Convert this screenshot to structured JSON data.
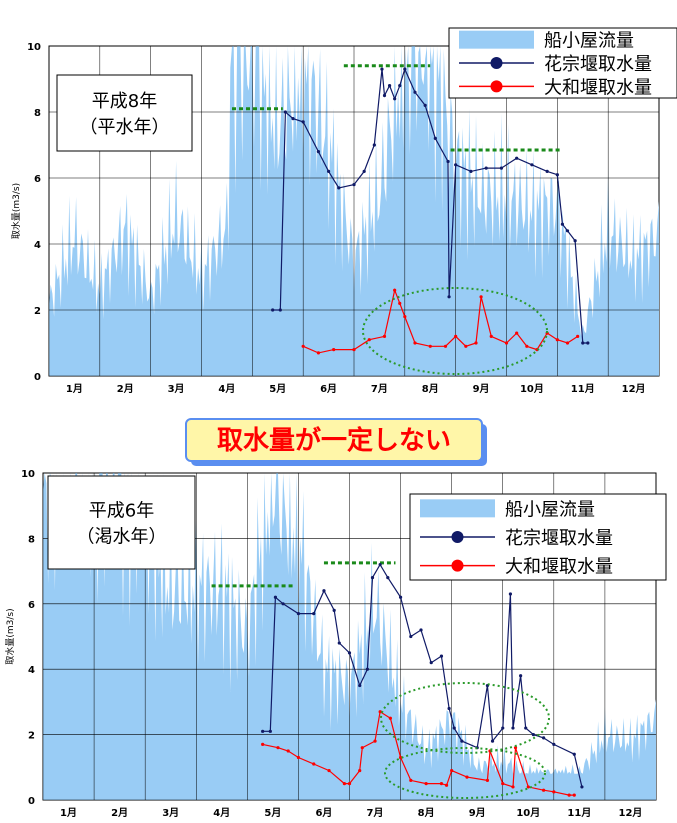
{
  "banner": {
    "text": "取水量が一定しない",
    "color": "#ff0000",
    "bg": "#fff6a8",
    "border": "#5a8ef0"
  },
  "colors": {
    "flow": "#99ccf5",
    "hanamune": "#101a66",
    "yamato": "#ff0000",
    "target": "#1a8a1a",
    "ellipse": "#2a9a2a"
  },
  "chart_data": [
    {
      "type": "line",
      "title": "平成8年\n（平水年）",
      "title_lines": [
        "平成8年",
        "（平水年）"
      ],
      "ylabel": "取水量(m3/s)",
      "xlabel": "",
      "ylim": [
        0,
        10
      ],
      "yticks": [
        "0",
        "2",
        "4",
        "6",
        "8",
        "10"
      ],
      "x_categories": [
        "1月",
        "2月",
        "3月",
        "4月",
        "5月",
        "6月",
        "7月",
        "8月",
        "9月",
        "10月",
        "11月",
        "12月"
      ],
      "grid": true,
      "legend": [
        "船小屋流量",
        "花宗堰取水量",
        "大和堰取水量"
      ],
      "legend_position": "top-right",
      "series": [
        {
          "name": "船小屋流量",
          "kind": "area",
          "x": [
            0,
            0.5,
            1,
            1.5,
            2,
            2.5,
            3,
            3.5,
            3.6,
            4,
            4.5,
            5,
            5.5,
            6,
            6.5,
            7,
            7.5,
            8,
            8.5,
            9,
            9.5,
            10,
            10.5,
            11,
            11.5,
            12
          ],
          "values": [
            2.2,
            4.2,
            2.6,
            4.5,
            2.4,
            4.8,
            3.0,
            4.5,
            10,
            10,
            7.5,
            9.5,
            7.0,
            3.5,
            5.5,
            10,
            10,
            6.5,
            5.5,
            5.5,
            5.0,
            5.2,
            1.2,
            4.5,
            3.5,
            4.3
          ]
        },
        {
          "name": "花宗堰取水量",
          "kind": "line",
          "x": [
            4.4,
            4.55,
            4.65,
            4.8,
            5.0,
            5.3,
            5.5,
            5.7,
            6.0,
            6.2,
            6.4,
            6.55,
            6.6,
            6.7,
            6.8,
            6.9,
            7.0,
            7.2,
            7.4,
            7.6,
            7.85,
            7.87,
            8.0,
            8.3,
            8.6,
            8.9,
            9.2,
            9.5,
            9.8,
            10.0,
            10.1,
            10.2,
            10.35,
            10.5,
            10.6
          ],
          "values": [
            2.0,
            2.0,
            8.0,
            7.8,
            7.7,
            6.8,
            6.2,
            5.7,
            5.8,
            6.2,
            7.0,
            9.3,
            8.5,
            8.8,
            8.4,
            8.8,
            9.3,
            8.6,
            8.2,
            7.2,
            6.5,
            2.4,
            6.4,
            6.2,
            6.3,
            6.3,
            6.6,
            6.4,
            6.2,
            6.1,
            4.6,
            4.4,
            4.1,
            1.0,
            1.0
          ]
        },
        {
          "name": "大和堰取水量",
          "kind": "line",
          "x": [
            5.0,
            5.3,
            5.6,
            6.0,
            6.3,
            6.6,
            6.8,
            6.9,
            7.0,
            7.2,
            7.5,
            7.8,
            8.0,
            8.2,
            8.4,
            8.5,
            8.7,
            9.0,
            9.2,
            9.4,
            9.6,
            9.8,
            10.0,
            10.2,
            10.4
          ],
          "values": [
            0.9,
            0.7,
            0.8,
            0.8,
            1.1,
            1.2,
            2.6,
            2.2,
            1.8,
            1.0,
            0.9,
            0.9,
            1.2,
            0.9,
            1.0,
            2.4,
            1.2,
            1.0,
            1.3,
            0.9,
            0.8,
            1.3,
            1.1,
            1.0,
            1.2
          ]
        }
      ],
      "target_levels": [
        {
          "x": [
            3.6,
            4.6
          ],
          "value": 8.1
        },
        {
          "x": [
            5.8,
            7.5
          ],
          "value": 9.4
        },
        {
          "x": [
            7.9,
            10.1
          ],
          "value": 6.85
        }
      ]
    },
    {
      "type": "line",
      "title": "平成6年\n（渇水年）",
      "title_lines": [
        "平成6年",
        "（渇水年）"
      ],
      "ylabel": "取水量(m3/s)",
      "xlabel": "",
      "ylim": [
        0,
        10
      ],
      "yticks": [
        "0",
        "2",
        "4",
        "6",
        "8",
        "10"
      ],
      "x_categories": [
        "1月",
        "2月",
        "3月",
        "4月",
        "5月",
        "6月",
        "7月",
        "8月",
        "9月",
        "10月",
        "11月",
        "12月"
      ],
      "grid": true,
      "legend": [
        "船小屋流量",
        "花宗堰取水量",
        "大和堰取水量"
      ],
      "legend_position": "top-right",
      "series": [
        {
          "name": "船小屋流量",
          "kind": "area",
          "x": [
            0,
            0.5,
            1,
            1.5,
            2,
            2.5,
            3,
            3.5,
            4,
            4.5,
            5,
            5.5,
            6,
            6.5,
            7,
            7.5,
            8,
            8.5,
            9,
            9.5,
            10,
            10.5,
            11,
            11.5,
            12
          ],
          "values": [
            9.5,
            10,
            10,
            10,
            8.5,
            6.5,
            6.5,
            6.5,
            5.0,
            10,
            8.0,
            4.0,
            3.5,
            6.0,
            3.0,
            1.5,
            2.5,
            1.0,
            1.2,
            0.8,
            0.8,
            0.8,
            2.0,
            1.8,
            2.5
          ]
        },
        {
          "name": "花宗堰取水量",
          "kind": "line",
          "x": [
            4.3,
            4.45,
            4.55,
            4.7,
            5.0,
            5.3,
            5.5,
            5.7,
            5.8,
            6.0,
            6.2,
            6.35,
            6.45,
            6.6,
            6.75,
            7.0,
            7.2,
            7.4,
            7.6,
            7.8,
            7.95,
            8.05,
            8.2,
            8.5,
            8.7,
            8.8,
            9.0,
            9.15,
            9.2,
            9.35,
            9.45,
            9.6,
            9.8,
            10.0,
            10.4,
            10.55
          ],
          "values": [
            2.1,
            2.1,
            6.2,
            6.0,
            5.7,
            5.7,
            6.4,
            5.8,
            4.8,
            4.5,
            3.5,
            4.0,
            6.8,
            7.2,
            6.8,
            6.2,
            5.0,
            5.2,
            4.2,
            4.4,
            2.8,
            2.2,
            1.8,
            1.6,
            3.5,
            1.8,
            2.2,
            6.3,
            2.2,
            3.8,
            2.2,
            2.0,
            1.9,
            1.7,
            1.4,
            0.4
          ]
        },
        {
          "name": "大和堰取水量",
          "kind": "line",
          "x": [
            4.3,
            4.6,
            4.8,
            5.0,
            5.3,
            5.6,
            5.9,
            6.0,
            6.2,
            6.25,
            6.5,
            6.6,
            6.8,
            7.0,
            7.2,
            7.5,
            7.8,
            7.9,
            8.0,
            8.3,
            8.7,
            8.75,
            9.0,
            9.2,
            9.25,
            9.5,
            9.8,
            10.0,
            10.3,
            10.4
          ],
          "values": [
            1.7,
            1.6,
            1.5,
            1.3,
            1.1,
            0.9,
            0.5,
            0.5,
            0.9,
            1.6,
            1.8,
            2.7,
            2.5,
            1.3,
            0.6,
            0.5,
            0.5,
            0.45,
            0.9,
            0.7,
            0.6,
            1.5,
            0.5,
            0.4,
            1.6,
            0.4,
            0.3,
            0.25,
            0.15,
            0.15
          ]
        }
      ],
      "target_levels": [
        {
          "x": [
            3.3,
            4.9
          ],
          "value": 6.55
        },
        {
          "x": [
            5.5,
            6.9
          ],
          "value": 7.25
        }
      ]
    }
  ]
}
